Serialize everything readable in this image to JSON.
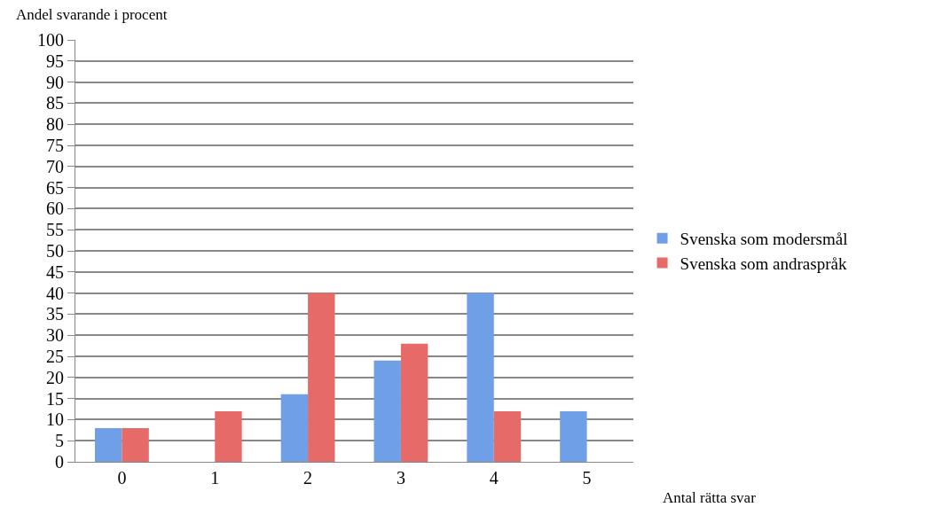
{
  "chart_data": {
    "type": "bar",
    "ylabel": "Andel svarande i procent",
    "xlabel": "Antal rätta svar",
    "categories": [
      "0",
      "1",
      "2",
      "3",
      "4",
      "5"
    ],
    "series": [
      {
        "name": "Svenska som modersmål",
        "color": "#6f9fe6",
        "values": [
          8,
          0,
          16,
          24,
          40,
          12
        ]
      },
      {
        "name": "Svenska som andraspråk",
        "color": "#e66a68",
        "values": [
          8,
          12,
          40,
          28,
          12,
          0
        ]
      }
    ],
    "ylim": [
      0,
      100
    ],
    "yticks": [
      0,
      5,
      10,
      15,
      20,
      25,
      30,
      35,
      40,
      45,
      50,
      55,
      60,
      65,
      70,
      75,
      80,
      85,
      90,
      95,
      100
    ],
    "grid": "y",
    "legend": "right"
  }
}
